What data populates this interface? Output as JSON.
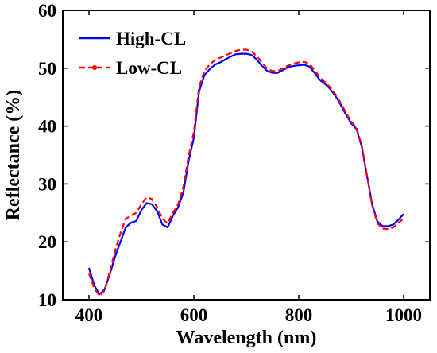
{
  "chart_data": {
    "type": "line",
    "xlabel": "Wavelength (nm)",
    "ylabel": "Reflectance (%)",
    "xlim": [
      350,
      1050
    ],
    "ylim": [
      10,
      60
    ],
    "xticks": [
      400,
      600,
      800,
      1000
    ],
    "yticks": [
      10,
      20,
      30,
      40,
      50,
      60
    ],
    "grid": false,
    "legend_position": "top-left",
    "series": [
      {
        "name": "High-CL",
        "color": "#0000ff",
        "line_style": "solid",
        "x": [
          400,
          410,
          420,
          430,
          440,
          450,
          460,
          470,
          480,
          490,
          500,
          510,
          520,
          530,
          540,
          550,
          560,
          570,
          580,
          590,
          600,
          610,
          620,
          630,
          640,
          650,
          660,
          670,
          680,
          690,
          700,
          710,
          720,
          730,
          740,
          750,
          760,
          770,
          780,
          790,
          800,
          810,
          820,
          830,
          840,
          850,
          860,
          870,
          880,
          890,
          900,
          910,
          920,
          930,
          940,
          950,
          960,
          970,
          980,
          990,
          1000
        ],
        "y": [
          15.5,
          12.5,
          10.9,
          11.8,
          14.5,
          17.5,
          20.0,
          22.5,
          23.3,
          23.6,
          25.5,
          26.7,
          26.5,
          25.3,
          23.0,
          22.5,
          24.5,
          26.0,
          28.5,
          34.0,
          38.0,
          46.0,
          48.8,
          49.8,
          50.6,
          51.0,
          51.5,
          52.0,
          52.4,
          52.5,
          52.5,
          52.3,
          51.5,
          50.4,
          49.5,
          49.2,
          49.2,
          49.7,
          50.2,
          50.4,
          50.5,
          50.6,
          50.3,
          49.2,
          48.0,
          47.3,
          46.4,
          45.2,
          43.7,
          42.0,
          40.5,
          39.5,
          36.5,
          31.5,
          26.5,
          23.5,
          22.7,
          22.7,
          23.0,
          23.8,
          24.8
        ]
      },
      {
        "name": "Low-CL",
        "color": "#ff0000",
        "line_style": "dashed",
        "x": [
          400,
          410,
          420,
          430,
          440,
          450,
          460,
          470,
          480,
          490,
          500,
          510,
          520,
          530,
          540,
          550,
          560,
          570,
          580,
          590,
          600,
          610,
          620,
          630,
          640,
          650,
          660,
          670,
          680,
          690,
          700,
          710,
          720,
          730,
          740,
          750,
          760,
          770,
          780,
          790,
          800,
          810,
          820,
          830,
          840,
          850,
          860,
          870,
          880,
          890,
          900,
          910,
          920,
          930,
          940,
          950,
          960,
          970,
          980,
          990,
          1000
        ],
        "y": [
          14.5,
          12.0,
          10.7,
          11.6,
          15.0,
          18.5,
          21.5,
          24.0,
          24.5,
          25.0,
          26.5,
          27.7,
          27.4,
          26.0,
          24.0,
          23.2,
          25.0,
          26.5,
          29.5,
          34.8,
          39.0,
          46.8,
          49.5,
          50.6,
          51.4,
          51.8,
          52.2,
          52.6,
          53.0,
          53.2,
          53.2,
          52.9,
          52.1,
          51.0,
          49.9,
          49.5,
          49.5,
          50.0,
          50.5,
          50.8,
          51.0,
          51.1,
          50.8,
          49.7,
          48.4,
          47.6,
          46.7,
          45.5,
          44.0,
          42.3,
          40.8,
          39.7,
          36.7,
          31.5,
          26.3,
          23.2,
          22.3,
          22.2,
          22.5,
          23.3,
          24.0
        ]
      }
    ]
  }
}
